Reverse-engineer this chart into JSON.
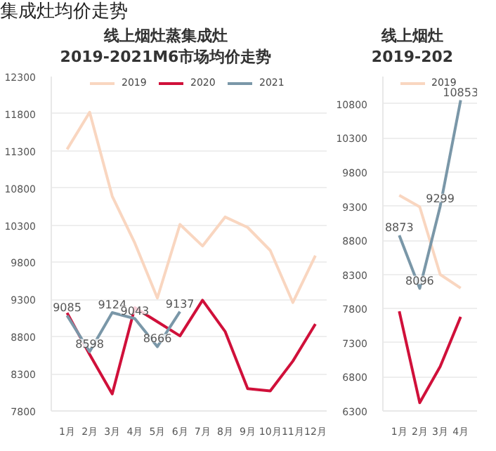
{
  "chart_data": [
    {
      "type": "line",
      "title": "线上烟灶蒸集成灶",
      "subtitle": "2019-2021M6市场均价走势",
      "annotations": [
        "集成灶均价走势"
      ],
      "categories": [
        "1月",
        "2月",
        "3月",
        "4月",
        "5月",
        "6月",
        "7月",
        "8月",
        "9月",
        "10月",
        "11月",
        "12月"
      ],
      "series": [
        {
          "name": "2019",
          "color": "#f9d6c0",
          "values": [
            11320,
            11820,
            10690,
            10060,
            9320,
            10310,
            10020,
            10410,
            10270,
            9960,
            9260,
            9890
          ]
        },
        {
          "name": "2020",
          "color": "#d0103a",
          "values": [
            9120,
            8560,
            8030,
            9190,
            9000,
            8810,
            9290,
            8870,
            8100,
            8070,
            8470,
            8970
          ]
        },
        {
          "name": "2021",
          "color": "#7a97a8",
          "values": [
            9085,
            8598,
            9124,
            9043,
            8666,
            9137,
            null,
            null,
            null,
            null,
            null,
            null
          ],
          "value_labels": [
            "9085",
            "8598",
            "9124",
            "9043",
            "8666",
            "9137",
            null,
            null,
            null,
            null,
            null,
            null
          ]
        }
      ],
      "ylim": [
        7800,
        12300
      ],
      "yticks": [
        7800,
        8300,
        8800,
        9300,
        9800,
        10300,
        10800,
        11300,
        11800,
        12300
      ],
      "grid": "y",
      "legend": "top"
    },
    {
      "type": "line",
      "title": "线上烟灶",
      "subtitle": "2019-202",
      "categories": [
        "1月",
        "2月",
        "3月",
        "4月"
      ],
      "series": [
        {
          "name": "2019",
          "color": "#f9d6c0",
          "values": [
            9460,
            9290,
            8300,
            8100
          ]
        },
        {
          "color": "#d0103a",
          "values": [
            7760,
            6420,
            6950,
            7680
          ]
        },
        {
          "color": "#7a97a8",
          "values": [
            8873,
            8096,
            9299,
            10853
          ],
          "value_labels": [
            "8873",
            "8096",
            "9299",
            "10853"
          ]
        }
      ],
      "ylim": [
        6300,
        11200
      ],
      "yticks": [
        6300,
        6800,
        7300,
        7800,
        8300,
        8800,
        9300,
        9800,
        10300,
        10800
      ],
      "grid": "y",
      "legend": "top"
    }
  ]
}
